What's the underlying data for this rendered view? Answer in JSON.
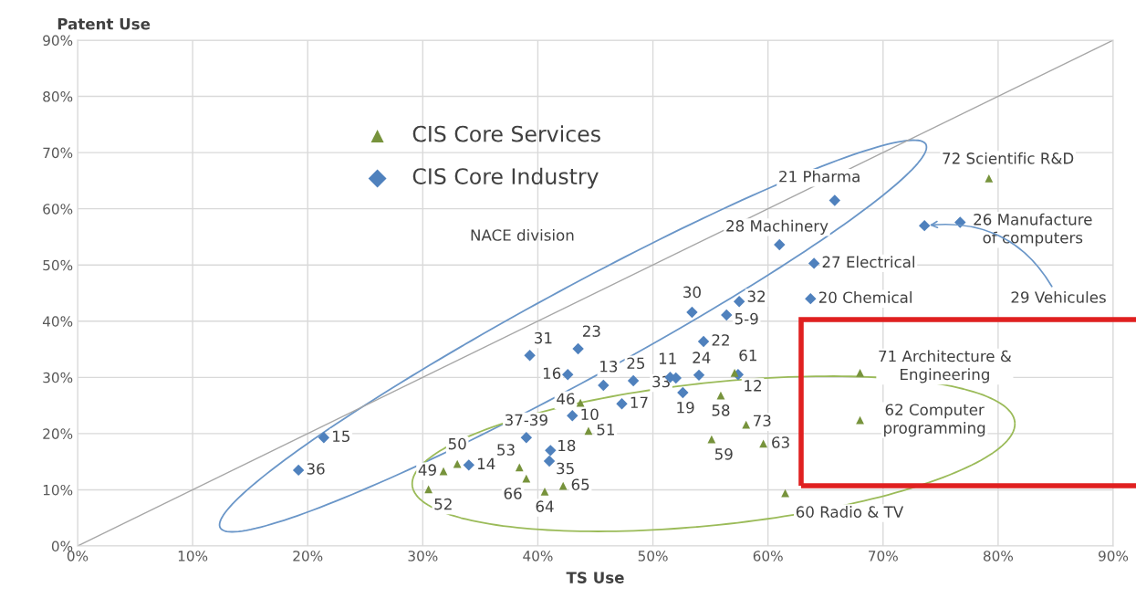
{
  "chart_data": {
    "type": "scatter",
    "xlabel": "TS Use",
    "ylabel": "Patent Use",
    "xlim": [
      0,
      90
    ],
    "ylim": [
      0,
      90
    ],
    "xticks": [
      {
        "value": 0,
        "label": "0%"
      },
      {
        "value": 10,
        "label": "10%"
      },
      {
        "value": 20,
        "label": "20%"
      },
      {
        "value": 30,
        "label": "30%"
      },
      {
        "value": 40,
        "label": "40%"
      },
      {
        "value": 50,
        "label": "50%"
      },
      {
        "value": 60,
        "label": "60%"
      },
      {
        "value": 70,
        "label": "70%"
      },
      {
        "value": 80,
        "label": "80%"
      },
      {
        "value": 90,
        "label": "90%"
      }
    ],
    "yticks": [
      {
        "value": 0,
        "label": "0%"
      },
      {
        "value": 10,
        "label": "10%"
      },
      {
        "value": 20,
        "label": "20%"
      },
      {
        "value": 30,
        "label": "30%"
      },
      {
        "value": 40,
        "label": "40%"
      },
      {
        "value": 50,
        "label": "50%"
      },
      {
        "value": 60,
        "label": "60%"
      },
      {
        "value": 70,
        "label": "70%"
      },
      {
        "value": 80,
        "label": "80%"
      },
      {
        "value": 90,
        "label": "90%"
      }
    ],
    "grid": true,
    "legend": "top left",
    "annotations": [
      "NACE division",
      {
        "text": "52",
        "x": 30.5,
        "y": 10.1
      },
      {
        "text": "49",
        "x": 31.8,
        "y": 13.3
      },
      {
        "text": "50",
        "x": 33.0,
        "y": 14.6
      },
      {
        "text": "53",
        "x": 38.4,
        "y": 14.0
      },
      {
        "text": "66",
        "x": 39.0,
        "y": 12.0
      },
      {
        "text": "64",
        "x": 40.6,
        "y": 9.7
      },
      {
        "text": "65",
        "x": 42.2,
        "y": 10.7
      },
      {
        "text": "46",
        "x": 43.7,
        "y": 25.5
      },
      {
        "text": "51",
        "x": 44.4,
        "y": 20.5
      },
      {
        "text": "59",
        "x": 55.1,
        "y": 19.0
      },
      {
        "text": "58",
        "x": 55.9,
        "y": 26.8
      },
      {
        "text": "61",
        "x": 57.1,
        "y": 30.8
      },
      {
        "text": "73",
        "x": 58.1,
        "y": 21.6
      },
      {
        "text": "63",
        "x": 59.6,
        "y": 18.2
      },
      {
        "text": "60 Radio & TV",
        "x": 61.5,
        "y": 9.4
      },
      {
        "text": "62 Computer\nprogramming",
        "x": 68.0,
        "y": 22.4
      },
      {
        "text": "71 Architecture &\nEngineering",
        "x": 68.0,
        "y": 30.8
      },
      {
        "text": "72 Scientific R&D",
        "x": 79.2,
        "y": 65.4
      },
      {
        "text": "36",
        "x": 19.2,
        "y": 13.5
      },
      {
        "text": "15",
        "x": 21.4,
        "y": 19.3
      },
      {
        "text": "14",
        "x": 34.0,
        "y": 14.4
      },
      {
        "text": "37-39",
        "x": 39.0,
        "y": 19.3
      },
      {
        "text": "35",
        "x": 41.0,
        "y": 15.1
      },
      {
        "text": "18",
        "x": 41.1,
        "y": 17.0
      },
      {
        "text": "31",
        "x": 39.3,
        "y": 33.9
      },
      {
        "text": "16",
        "x": 42.6,
        "y": 30.5
      },
      {
        "text": "23",
        "x": 43.5,
        "y": 35.1
      },
      {
        "text": "10",
        "x": 43.0,
        "y": 23.2
      },
      {
        "text": "13",
        "x": 45.7,
        "y": 28.6
      },
      {
        "text": "25",
        "x": 48.3,
        "y": 29.4
      },
      {
        "text": "17",
        "x": 47.3,
        "y": 25.3
      },
      {
        "text": "11",
        "x": 51.5,
        "y": 30.0
      },
      {
        "text": "33",
        "x": 52.0,
        "y": 29.9
      },
      {
        "text": "19",
        "x": 52.6,
        "y": 27.3
      },
      {
        "text": "24",
        "x": 54.0,
        "y": 30.4
      },
      {
        "text": "12",
        "x": 57.4,
        "y": 30.5
      },
      {
        "text": "22",
        "x": 54.4,
        "y": 36.4
      },
      {
        "text": "30",
        "x": 53.4,
        "y": 41.6
      },
      {
        "text": "5-9",
        "x": 56.4,
        "y": 41.1
      },
      {
        "text": "32",
        "x": 57.5,
        "y": 43.5
      },
      {
        "text": "20 Chemical",
        "x": 63.7,
        "y": 44.0
      },
      {
        "text": "28 Machinery",
        "x": 61.0,
        "y": 53.6
      },
      {
        "text": "27 Electrical",
        "x": 64.0,
        "y": 50.3
      },
      {
        "text": "21 Pharma",
        "x": 65.8,
        "y": 61.5
      },
      {
        "text": "29 Vehicules",
        "x": 73.6,
        "y": 57.0
      },
      {
        "text": "26 Manufacture\nof computers",
        "x": 76.7,
        "y": 57.6
      }
    ],
    "series": [
      {
        "name": "CIS Core Services",
        "marker": "triangle",
        "color": "#77933c",
        "x": [
          30.5,
          31.8,
          33.0,
          38.4,
          39.0,
          40.6,
          42.2,
          43.7,
          44.4,
          55.1,
          55.9,
          57.1,
          58.1,
          59.6,
          61.5,
          68.0,
          68.0,
          79.2
        ],
        "values": [
          10.1,
          13.3,
          14.6,
          14.0,
          12.0,
          9.7,
          10.7,
          25.5,
          20.5,
          19.0,
          26.8,
          30.8,
          21.6,
          18.2,
          9.4,
          22.4,
          30.8,
          65.4
        ]
      },
      {
        "name": "CIS Core Industry",
        "marker": "diamond",
        "color": "#4f81bd",
        "x": [
          19.2,
          21.4,
          34.0,
          39.0,
          41.0,
          41.1,
          39.3,
          42.6,
          43.5,
          43.0,
          45.7,
          48.3,
          47.3,
          51.5,
          52.0,
          52.6,
          54.0,
          57.4,
          54.4,
          53.4,
          56.4,
          57.5,
          63.7,
          61.0,
          64.0,
          65.8,
          73.6,
          76.7
        ],
        "values": [
          13.5,
          19.3,
          14.4,
          19.3,
          15.1,
          17.0,
          33.9,
          30.5,
          35.1,
          23.2,
          28.6,
          29.4,
          25.3,
          30.0,
          29.9,
          27.3,
          30.4,
          30.5,
          36.4,
          41.6,
          41.1,
          43.5,
          44.0,
          53.6,
          50.3,
          61.5,
          57.0,
          57.6
        ]
      },
      {
        "type": "line",
        "color": "#a6a6a6",
        "x": [
          0,
          90
        ],
        "values": [
          0,
          90
        ]
      }
    ]
  }
}
